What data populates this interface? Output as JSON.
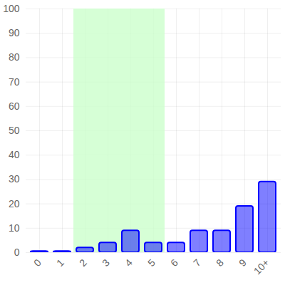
{
  "chart_data": {
    "type": "bar",
    "categories": [
      "0",
      "1",
      "2",
      "3",
      "4",
      "5",
      "6",
      "7",
      "8",
      "9",
      "10+"
    ],
    "values": [
      0.5,
      0.5,
      2,
      4,
      9,
      4,
      4,
      9,
      9,
      19,
      29
    ],
    "color": "#0000ff",
    "highlight": [
      "2",
      "5"
    ],
    "ylim": [
      0,
      100
    ],
    "yticks": [
      0,
      10,
      20,
      30,
      40,
      50,
      60,
      70,
      80,
      90,
      100
    ],
    "grid": true
  }
}
